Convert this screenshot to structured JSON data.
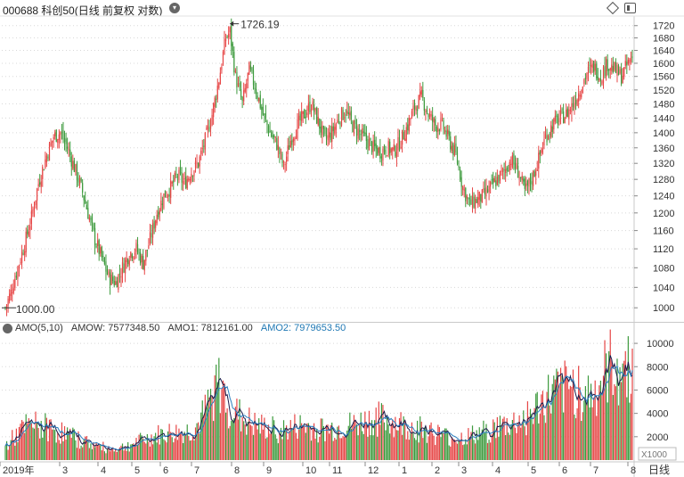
{
  "header": {
    "title": "000688 科创50(日线 前复权 对数)"
  },
  "amo_legend": {
    "label": "AMO(5,10)",
    "amow": "AMOW: 7577348.50",
    "amo1": "AMO1: 7812161.00",
    "amo2": "AMO2: 7979653.50"
  },
  "colors": {
    "up": "#e64545",
    "down": "#3d9a3d",
    "ma1": "#1a1a4a",
    "ma2": "#2a7fbf",
    "grid": "#d8d8d8",
    "amo2_text": "#1f78b4"
  },
  "chart_data": [
    {
      "type": "candlestick",
      "scale": "log",
      "ylim": [
        980,
        1740
      ],
      "y_ticks": [
        1000,
        1040,
        1080,
        1120,
        1160,
        1200,
        1240,
        1280,
        1320,
        1360,
        1400,
        1440,
        1480,
        1520,
        1560,
        1600,
        1640,
        1680,
        1720
      ],
      "annotations": [
        {
          "label": "1726.19",
          "value": 1726.19,
          "kind": "high"
        },
        {
          "label": "1000.00",
          "value": 1000.0,
          "kind": "low"
        }
      ],
      "close_path": [
        [
          0,
          1000
        ],
        [
          4,
          1030
        ],
        [
          9,
          1080
        ],
        [
          14,
          1130
        ],
        [
          19,
          1190
        ],
        [
          24,
          1270
        ],
        [
          30,
          1340
        ],
        [
          35,
          1390
        ],
        [
          40,
          1400
        ],
        [
          45,
          1360
        ],
        [
          50,
          1310
        ],
        [
          55,
          1260
        ],
        [
          60,
          1200
        ],
        [
          65,
          1140
        ],
        [
          70,
          1100
        ],
        [
          75,
          1060
        ],
        [
          80,
          1050
        ],
        [
          85,
          1080
        ],
        [
          90,
          1110
        ],
        [
          95,
          1120
        ],
        [
          100,
          1090
        ],
        [
          105,
          1140
        ],
        [
          110,
          1200
        ],
        [
          115,
          1240
        ],
        [
          120,
          1260
        ],
        [
          125,
          1290
        ],
        [
          130,
          1270
        ],
        [
          135,
          1300
        ],
        [
          140,
          1320
        ],
        [
          145,
          1380
        ],
        [
          150,
          1450
        ],
        [
          155,
          1550
        ],
        [
          160,
          1680
        ],
        [
          163,
          1700
        ],
        [
          167,
          1560
        ],
        [
          172,
          1480
        ],
        [
          177,
          1580
        ],
        [
          182,
          1520
        ],
        [
          187,
          1450
        ],
        [
          192,
          1400
        ],
        [
          197,
          1370
        ],
        [
          202,
          1310
        ],
        [
          207,
          1380
        ],
        [
          212,
          1420
        ],
        [
          217,
          1450
        ],
        [
          222,
          1480
        ],
        [
          227,
          1430
        ],
        [
          232,
          1380
        ],
        [
          237,
          1400
        ],
        [
          242,
          1440
        ],
        [
          247,
          1460
        ],
        [
          252,
          1420
        ],
        [
          257,
          1400
        ],
        [
          262,
          1380
        ],
        [
          267,
          1360
        ],
        [
          272,
          1350
        ],
        [
          277,
          1360
        ],
        [
          282,
          1350
        ],
        [
          287,
          1380
        ],
        [
          292,
          1420
        ],
        [
          297,
          1470
        ],
        [
          302,
          1500
        ],
        [
          307,
          1450
        ],
        [
          312,
          1420
        ],
        [
          317,
          1420
        ],
        [
          322,
          1380
        ],
        [
          327,
          1340
        ],
        [
          332,
          1260
        ],
        [
          337,
          1220
        ],
        [
          342,
          1230
        ],
        [
          347,
          1240
        ],
        [
          352,
          1260
        ],
        [
          357,
          1280
        ],
        [
          362,
          1300
        ],
        [
          367,
          1330
        ],
        [
          372,
          1300
        ],
        [
          377,
          1250
        ],
        [
          382,
          1280
        ],
        [
          387,
          1330
        ],
        [
          392,
          1390
        ],
        [
          397,
          1420
        ],
        [
          402,
          1440
        ],
        [
          407,
          1450
        ],
        [
          412,
          1480
        ],
        [
          417,
          1520
        ],
        [
          422,
          1570
        ],
        [
          427,
          1590
        ],
        [
          432,
          1560
        ],
        [
          437,
          1600
        ],
        [
          442,
          1580
        ],
        [
          447,
          1560
        ],
        [
          452,
          1600
        ],
        [
          455,
          1620
        ]
      ]
    },
    {
      "type": "bar",
      "name": "AMO",
      "ylim": [
        0,
        11000
      ],
      "y_ticks": [
        2000,
        4000,
        6000,
        8000,
        10000
      ],
      "unit_label": "X1000",
      "x_ticks": [
        "2019年",
        "3",
        "4",
        "5",
        "6",
        "7",
        "8",
        "9",
        "10",
        "11",
        "12",
        "1",
        "2",
        "3",
        "4",
        "5",
        "6",
        "7",
        "8"
      ],
      "period_label": "日线",
      "volume_path": [
        [
          0,
          1200
        ],
        [
          5,
          1800
        ],
        [
          10,
          2400
        ],
        [
          15,
          2800
        ],
        [
          20,
          3000
        ],
        [
          25,
          2900
        ],
        [
          30,
          2800
        ],
        [
          35,
          2600
        ],
        [
          40,
          2400
        ],
        [
          45,
          2200
        ],
        [
          50,
          1900
        ],
        [
          55,
          1700
        ],
        [
          60,
          1500
        ],
        [
          65,
          1300
        ],
        [
          70,
          1100
        ],
        [
          75,
          1000
        ],
        [
          80,
          1000
        ],
        [
          85,
          1100
        ],
        [
          90,
          1300
        ],
        [
          95,
          1500
        ],
        [
          100,
          1700
        ],
        [
          105,
          1900
        ],
        [
          110,
          2100
        ],
        [
          115,
          2200
        ],
        [
          120,
          2300
        ],
        [
          125,
          2300
        ],
        [
          130,
          2400
        ],
        [
          135,
          2500
        ],
        [
          140,
          3000
        ],
        [
          145,
          4000
        ],
        [
          150,
          5500
        ],
        [
          153,
          6400
        ],
        [
          156,
          6200
        ],
        [
          160,
          5200
        ],
        [
          165,
          4200
        ],
        [
          170,
          3700
        ],
        [
          175,
          3300
        ],
        [
          180,
          3000
        ],
        [
          185,
          2800
        ],
        [
          190,
          2700
        ],
        [
          195,
          2600
        ],
        [
          200,
          2500
        ],
        [
          205,
          2600
        ],
        [
          210,
          2800
        ],
        [
          215,
          2900
        ],
        [
          220,
          2800
        ],
        [
          225,
          2700
        ],
        [
          230,
          2600
        ],
        [
          235,
          2600
        ],
        [
          240,
          2700
        ],
        [
          245,
          2800
        ],
        [
          250,
          2900
        ],
        [
          255,
          3000
        ],
        [
          260,
          3200
        ],
        [
          265,
          3400
        ],
        [
          270,
          3500
        ],
        [
          275,
          3400
        ],
        [
          280,
          3300
        ],
        [
          285,
          3100
        ],
        [
          290,
          2900
        ],
        [
          295,
          2800
        ],
        [
          300,
          2700
        ],
        [
          305,
          2600
        ],
        [
          310,
          2400
        ],
        [
          315,
          2200
        ],
        [
          320,
          2000
        ],
        [
          325,
          1900
        ],
        [
          330,
          1900
        ],
        [
          335,
          2000
        ],
        [
          340,
          2100
        ],
        [
          345,
          2300
        ],
        [
          350,
          2500
        ],
        [
          355,
          2700
        ],
        [
          360,
          2900
        ],
        [
          365,
          3000
        ],
        [
          370,
          3200
        ],
        [
          375,
          3500
        ],
        [
          380,
          3800
        ],
        [
          385,
          4300
        ],
        [
          390,
          4900
        ],
        [
          395,
          5400
        ],
        [
          400,
          5700
        ],
        [
          405,
          5900
        ],
        [
          410,
          6100
        ],
        [
          415,
          6200
        ],
        [
          420,
          5900
        ],
        [
          425,
          5400
        ],
        [
          430,
          6200
        ],
        [
          435,
          7200
        ],
        [
          440,
          8000
        ],
        [
          445,
          8200
        ],
        [
          450,
          7900
        ],
        [
          455,
          7800
        ]
      ]
    }
  ]
}
